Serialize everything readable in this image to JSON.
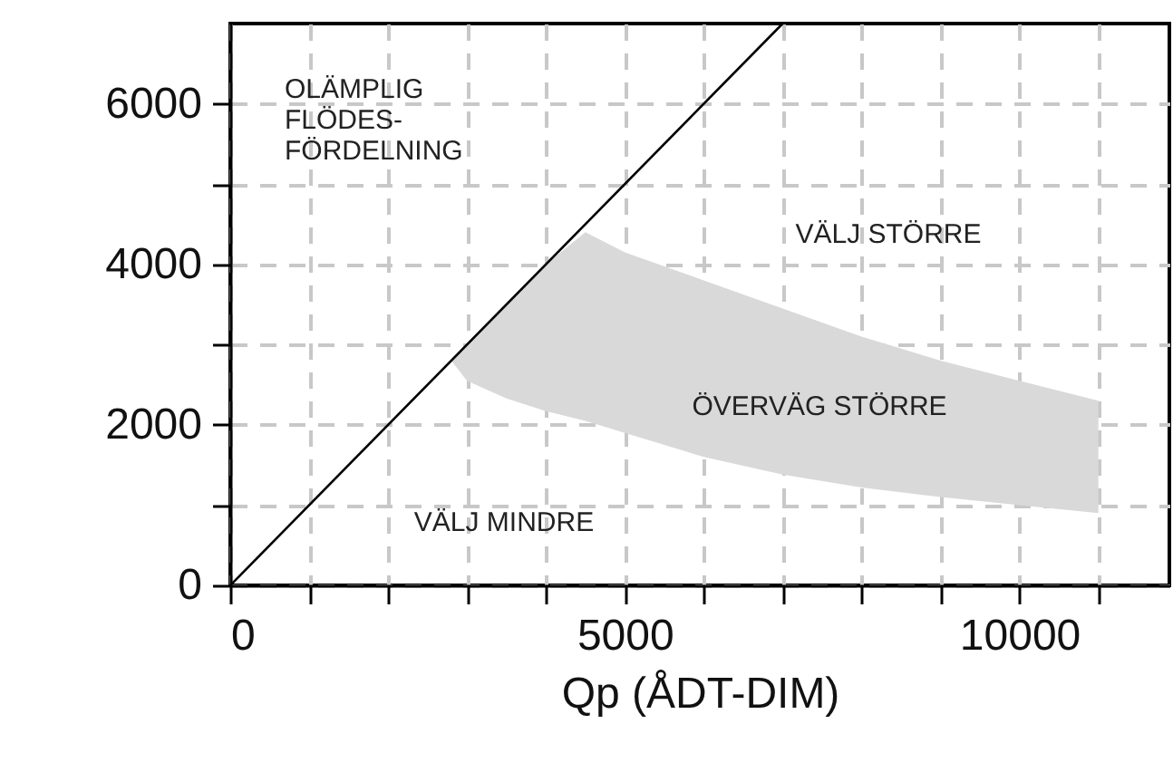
{
  "chart_data": {
    "type": "line",
    "xlabel": "Qp (ÅDT-DIM)",
    "xlim": [
      0,
      11900
    ],
    "ylim": [
      0,
      7000
    ],
    "xticks": [
      0,
      {
        "value": 1000,
        "label": null
      },
      {
        "value": 2000,
        "label": null
      },
      {
        "value": 3000,
        "label": null
      },
      {
        "value": 4000,
        "label": null
      },
      5000,
      {
        "value": 6000,
        "label": null
      },
      {
        "value": 7000,
        "label": null
      },
      {
        "value": 8000,
        "label": null
      },
      {
        "value": 9000,
        "label": null
      },
      10000,
      {
        "value": 11000,
        "label": null
      }
    ],
    "yticks": [
      0,
      {
        "value": 1000,
        "label": null
      },
      2000,
      {
        "value": 3000,
        "label": null
      },
      4000,
      {
        "value": 5000,
        "label": null
      },
      6000
    ],
    "grid": true,
    "series": [
      {
        "type": "area",
        "color": "#d9d9d9",
        "x": [
          2800,
          3000,
          3500,
          4000,
          4500,
          5000,
          6000,
          7000,
          8000,
          9000,
          10000,
          11000
        ],
        "values": [
          null,
          null,
          null,
          null,
          null,
          null,
          null,
          null,
          null,
          null,
          null,
          null
        ],
        "lower": [
          2800,
          2550,
          2330,
          2170,
          2050,
          1900,
          1600,
          1380,
          1220,
          1100,
          1000,
          900
        ],
        "upper": [
          2800,
          3000,
          3500,
          4000,
          4400,
          4150,
          3800,
          3450,
          3100,
          2800,
          2550,
          2300
        ]
      },
      {
        "color": "#000000",
        "x": [
          0,
          7000
        ],
        "values": [
          0,
          7000
        ]
      }
    ],
    "annotations": [
      "OLÄMPLIG\nFLÖDES-\nFÖRDELNING",
      "VÄLJ STÖRRE",
      "ÖVERVÄG STÖRRE",
      "VÄLJ MINDRE"
    ]
  }
}
